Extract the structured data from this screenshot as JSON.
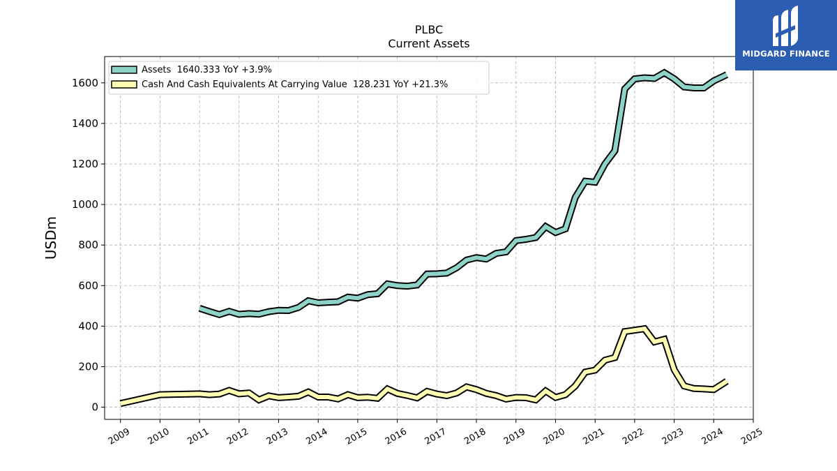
{
  "chart_data": {
    "type": "line",
    "title": "PLBC",
    "subtitle": "Current  Assets",
    "xlabel": "",
    "ylabel": "USDm",
    "xlim": [
      2008.6,
      2025.0
    ],
    "ylim": [
      -60,
      1730
    ],
    "grid": true,
    "legend_position": "top-left",
    "x_ticks": [
      "2009",
      "2010",
      "2011",
      "2012",
      "2013",
      "2014",
      "2015",
      "2016",
      "2017",
      "2018",
      "2019",
      "2020",
      "2021",
      "2022",
      "2023",
      "2024",
      "2025"
    ],
    "y_ticks": [
      "0",
      "200",
      "400",
      "600",
      "800",
      "1000",
      "1200",
      "1400",
      "1600"
    ],
    "series": [
      {
        "name": "Assets",
        "legend": "Assets  1640.333 YoY +3.9%",
        "color": "#8dd3c7",
        "x": [
          2011.0,
          2011.25,
          2011.5,
          2011.75,
          2012.0,
          2012.25,
          2012.5,
          2012.75,
          2013.0,
          2013.25,
          2013.5,
          2013.75,
          2014.0,
          2014.25,
          2014.5,
          2014.75,
          2015.0,
          2015.25,
          2015.5,
          2015.75,
          2016.0,
          2016.25,
          2016.5,
          2016.75,
          2017.0,
          2017.25,
          2017.5,
          2017.75,
          2018.0,
          2018.25,
          2018.5,
          2018.75,
          2019.0,
          2019.25,
          2019.5,
          2019.75,
          2020.0,
          2020.25,
          2020.5,
          2020.75,
          2021.0,
          2021.25,
          2021.5,
          2021.75,
          2022.0,
          2022.25,
          2022.5,
          2022.75,
          2023.0,
          2023.25,
          2023.5,
          2023.75,
          2024.0,
          2024.33
        ],
        "y": [
          488,
          472,
          457,
          473,
          458,
          462,
          459,
          471,
          478,
          477,
          492,
          525,
          515,
          518,
          520,
          543,
          538,
          555,
          560,
          608,
          600,
          597,
          603,
          657,
          658,
          662,
          688,
          726,
          738,
          731,
          759,
          766,
          822,
          828,
          837,
          891,
          862,
          880,
          1035,
          1115,
          1110,
          1200,
          1265,
          1570,
          1620,
          1625,
          1622,
          1650,
          1620,
          1580,
          1575,
          1575,
          1610,
          1640.333
        ]
      },
      {
        "name": "Cash And Cash Equivalents At Carrying Value",
        "legend": "Cash And Cash Equivalents At Carrying Value  128.231 YoY +21.3%",
        "color": "#ffffb3",
        "x": [
          2009.0,
          2010.0,
          2011.0,
          2011.25,
          2011.5,
          2011.75,
          2012.0,
          2012.25,
          2012.5,
          2012.75,
          2013.0,
          2013.25,
          2013.5,
          2013.75,
          2014.0,
          2014.25,
          2014.5,
          2014.75,
          2015.0,
          2015.25,
          2015.5,
          2015.75,
          2016.0,
          2016.25,
          2016.5,
          2016.75,
          2017.0,
          2017.25,
          2017.5,
          2017.75,
          2018.0,
          2018.25,
          2018.5,
          2018.75,
          2019.0,
          2019.25,
          2019.5,
          2019.75,
          2020.0,
          2020.25,
          2020.5,
          2020.75,
          2021.0,
          2021.25,
          2021.5,
          2021.75,
          2022.0,
          2022.25,
          2022.5,
          2022.75,
          2023.0,
          2023.25,
          2023.5,
          2023.75,
          2024.0,
          2024.33
        ],
        "y": [
          18,
          62,
          66,
          62,
          65,
          83,
          66,
          70,
          36,
          56,
          47,
          50,
          54,
          75,
          50,
          50,
          41,
          62,
          47,
          49,
          44,
          90,
          68,
          58,
          46,
          78,
          65,
          57,
          70,
          100,
          87,
          68,
          57,
          40,
          48,
          47,
          36,
          80,
          48,
          62,
          105,
          173,
          183,
          232,
          245,
          373,
          380,
          387,
          322,
          335,
          185,
          105,
          92,
          90,
          87,
          128.231
        ]
      }
    ]
  },
  "logo": {
    "brand": "MIDGARD FINANCE"
  }
}
